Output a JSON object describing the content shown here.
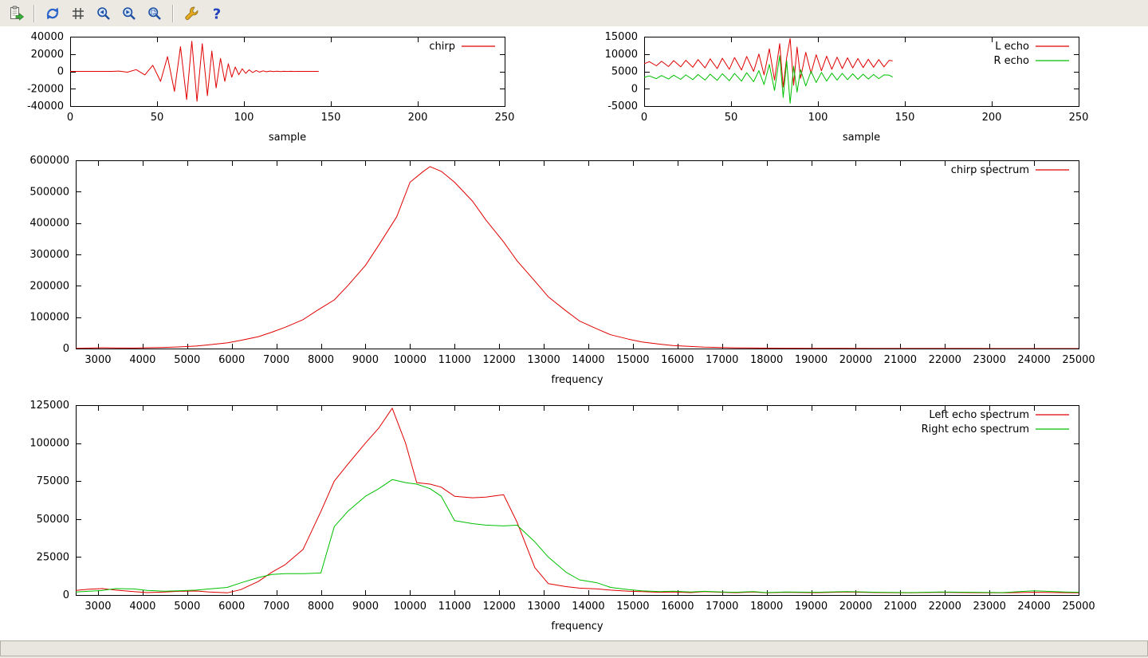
{
  "statusbar": {
    "text": ""
  },
  "toolbar": {
    "buttons": [
      {
        "name": "copy-plot-button",
        "icon": "clipboard-copy-icon"
      },
      {
        "type": "separator"
      },
      {
        "name": "replot-button",
        "icon": "refresh-arrows-icon"
      },
      {
        "name": "toggle-grid-button",
        "icon": "grid-icon"
      },
      {
        "name": "zoom-previous-button",
        "icon": "magnifier-left-icon"
      },
      {
        "name": "zoom-next-button",
        "icon": "magnifier-right-icon"
      },
      {
        "name": "autoscale-button",
        "icon": "magnifier-icon"
      },
      {
        "type": "separator"
      },
      {
        "name": "configure-button",
        "icon": "wrench-icon"
      },
      {
        "name": "help-button",
        "icon": "question-mark-icon"
      }
    ]
  },
  "colors": {
    "red": "#e00000",
    "green": "#00c000",
    "axis": "#000000"
  },
  "chart_data": [
    {
      "type": "line",
      "title": "",
      "xlabel": "sample",
      "ylabel": "",
      "xlim": [
        0,
        250
      ],
      "ylim": [
        -40000,
        40000
      ],
      "xticks": [
        0,
        50,
        100,
        150,
        200,
        250
      ],
      "yticks": [
        -40000,
        -20000,
        0,
        20000,
        40000
      ],
      "grid": false,
      "legend_position": "top-right",
      "series": [
        {
          "name": "chirp",
          "color": "#e00000",
          "x": [
            0,
            24,
            28,
            33,
            38,
            43,
            47.5,
            52,
            56,
            60,
            63.5,
            67,
            70,
            73,
            76,
            79,
            81.5,
            84,
            86.5,
            89,
            91,
            93,
            95,
            97,
            99,
            101,
            103,
            105,
            107,
            109,
            111,
            113,
            115,
            117,
            119,
            121,
            123,
            125,
            127,
            129,
            131,
            133,
            135,
            137,
            139,
            141,
            143
          ],
          "y": [
            0,
            0,
            400,
            -900,
            2000,
            -4000,
            7000,
            -11500,
            17000,
            -23000,
            28500,
            -32500,
            34800,
            -34500,
            32000,
            -28000,
            23500,
            -19000,
            15000,
            -11500,
            8800,
            -6700,
            5100,
            -3900,
            3000,
            -2300,
            1800,
            -1400,
            1050,
            -800,
            620,
            -480,
            370,
            -280,
            215,
            -165,
            130,
            -100,
            75,
            -60,
            45,
            -35,
            25,
            -20,
            15,
            -10,
            0
          ]
        }
      ]
    },
    {
      "type": "line",
      "title": "",
      "xlabel": "sample",
      "ylabel": "",
      "xlim": [
        0,
        250
      ],
      "ylim": [
        -5000,
        15000
      ],
      "xticks": [
        0,
        50,
        100,
        150,
        200,
        250
      ],
      "yticks": [
        -5000,
        0,
        5000,
        10000,
        15000
      ],
      "grid": false,
      "legend_position": "top-right",
      "series": [
        {
          "name": "L echo",
          "color": "#e00000",
          "x": [
            0,
            3,
            7,
            10,
            14,
            17,
            21,
            24,
            28,
            31,
            35,
            38,
            42,
            45,
            49,
            52,
            56,
            59,
            63,
            66,
            69,
            72,
            75,
            78,
            80,
            82,
            84,
            86,
            88,
            90,
            93,
            96,
            99,
            102,
            105,
            108,
            111,
            114,
            117,
            120,
            123,
            126,
            129,
            132,
            135,
            138,
            141,
            143
          ],
          "y": [
            7200,
            7800,
            6600,
            7900,
            6400,
            8100,
            6300,
            8200,
            6200,
            8400,
            6000,
            8600,
            5800,
            8800,
            5600,
            9000,
            5400,
            9300,
            5000,
            10000,
            4000,
            11500,
            2500,
            13000,
            500,
            9000,
            14500,
            1000,
            12000,
            3000,
            10500,
            4500,
            9800,
            5200,
            9400,
            5600,
            9100,
            5800,
            8900,
            6000,
            8700,
            6100,
            8500,
            6200,
            8400,
            6300,
            8200,
            8000
          ]
        },
        {
          "name": "R echo",
          "color": "#00c000",
          "x": [
            0,
            3,
            7,
            10,
            14,
            17,
            21,
            24,
            28,
            31,
            35,
            38,
            42,
            45,
            49,
            52,
            56,
            59,
            63,
            66,
            69,
            72,
            75,
            78,
            80,
            82,
            84,
            86,
            88,
            90,
            93,
            96,
            99,
            102,
            105,
            108,
            111,
            114,
            117,
            120,
            123,
            126,
            129,
            132,
            135,
            138,
            141,
            143
          ],
          "y": [
            3300,
            3700,
            2900,
            3800,
            2800,
            3900,
            2700,
            4000,
            2600,
            4100,
            2500,
            4200,
            2400,
            4300,
            2300,
            4400,
            2200,
            4600,
            2000,
            5200,
            1200,
            7000,
            -500,
            9500,
            -2500,
            8000,
            -4200,
            6500,
            -1000,
            5500,
            800,
            5000,
            1800,
            4700,
            2200,
            4500,
            2500,
            4400,
            2600,
            4300,
            2700,
            4200,
            2800,
            4100,
            2900,
            4000,
            3900,
            3400
          ]
        }
      ]
    },
    {
      "type": "line",
      "title": "",
      "xlabel": "frequency",
      "ylabel": "",
      "xlim": [
        2500,
        25000
      ],
      "ylim": [
        0,
        600000
      ],
      "xticks": [
        3000,
        4000,
        5000,
        6000,
        7000,
        8000,
        9000,
        10000,
        11000,
        12000,
        13000,
        14000,
        15000,
        16000,
        17000,
        18000,
        19000,
        20000,
        21000,
        22000,
        23000,
        24000,
        25000
      ],
      "yticks": [
        0,
        100000,
        200000,
        300000,
        400000,
        500000,
        600000
      ],
      "grid": false,
      "legend_position": "top-right",
      "series": [
        {
          "name": "chirp spectrum",
          "color": "#e00000",
          "x": [
            2500,
            2800,
            3100,
            3400,
            3800,
            4100,
            4500,
            4800,
            5200,
            5500,
            5900,
            6200,
            6600,
            6900,
            7200,
            7600,
            7900,
            8300,
            8600,
            9000,
            9300,
            9700,
            10000,
            10300,
            10450,
            10700,
            11000,
            11400,
            11700,
            12100,
            12400,
            12800,
            13100,
            13500,
            13800,
            14200,
            14500,
            14900,
            15200,
            15600,
            15900,
            16300,
            16600,
            17000,
            17300,
            17700,
            18000,
            18400,
            19000,
            19700,
            20400,
            21100,
            21800,
            22500,
            23200,
            23900,
            24600,
            25000
          ],
          "y": [
            500,
            1500,
            2500,
            2000,
            1500,
            2500,
            3500,
            5000,
            8000,
            12000,
            18000,
            26000,
            38000,
            52000,
            68000,
            92000,
            120000,
            155000,
            200000,
            265000,
            330000,
            420000,
            530000,
            565000,
            580000,
            565000,
            530000,
            470000,
            410000,
            340000,
            280000,
            215000,
            165000,
            120000,
            88000,
            62000,
            44000,
            30000,
            21000,
            14000,
            9500,
            6500,
            4500,
            3200,
            2300,
            1700,
            1200,
            900,
            600,
            400,
            300,
            250,
            200,
            150,
            120,
            100,
            80,
            70
          ]
        }
      ]
    },
    {
      "type": "line",
      "title": "",
      "xlabel": "frequency",
      "ylabel": "",
      "xlim": [
        2500,
        25000
      ],
      "ylim": [
        0,
        125000
      ],
      "xticks": [
        3000,
        4000,
        5000,
        6000,
        7000,
        8000,
        9000,
        10000,
        11000,
        12000,
        13000,
        14000,
        15000,
        16000,
        17000,
        18000,
        19000,
        20000,
        21000,
        22000,
        23000,
        24000,
        25000
      ],
      "yticks": [
        0,
        25000,
        50000,
        75000,
        100000,
        125000
      ],
      "grid": false,
      "legend_position": "top-right",
      "series": [
        {
          "name": "Left echo spectrum",
          "color": "#e00000",
          "x": [
            2500,
            2800,
            3100,
            3400,
            3800,
            4100,
            4500,
            4800,
            5200,
            5500,
            5900,
            6200,
            6600,
            6900,
            7200,
            7600,
            8000,
            8300,
            8600,
            9000,
            9300,
            9600,
            9900,
            10150,
            10450,
            10700,
            11000,
            11400,
            11700,
            12100,
            12400,
            12800,
            13100,
            13500,
            13800,
            14200,
            14500,
            14900,
            15200,
            15600,
            15900,
            16300,
            16600,
            17000,
            17300,
            17700,
            18000,
            18400,
            19100,
            19800,
            20500,
            21200,
            21900,
            22600,
            23300,
            24000,
            24700,
            25000
          ],
          "y": [
            3000,
            3800,
            4200,
            3200,
            2200,
            1600,
            2000,
            2400,
            2600,
            2000,
            1400,
            3500,
            9000,
            15000,
            20000,
            30000,
            55000,
            75000,
            86000,
            100000,
            110000,
            123000,
            100000,
            74000,
            73000,
            71000,
            65000,
            64000,
            64500,
            66000,
            48000,
            18000,
            7500,
            5500,
            4500,
            4000,
            3200,
            2500,
            2200,
            1800,
            2000,
            1600,
            2200,
            1800,
            1500,
            2000,
            1400,
            1800,
            1500,
            2000,
            1600,
            1400,
            1800,
            1500,
            1400,
            1800,
            1500,
            1400
          ]
        },
        {
          "name": "Right echo spectrum",
          "color": "#00c000",
          "x": [
            2500,
            2800,
            3100,
            3400,
            3800,
            4100,
            4500,
            4800,
            5200,
            5500,
            5900,
            6200,
            6600,
            6900,
            7200,
            7600,
            8000,
            8300,
            8600,
            9000,
            9300,
            9600,
            9900,
            10150,
            10450,
            10700,
            11000,
            11400,
            11700,
            12100,
            12400,
            12800,
            13100,
            13500,
            13800,
            14200,
            14500,
            14900,
            15200,
            15600,
            15900,
            16300,
            16600,
            17000,
            17300,
            17700,
            18000,
            18400,
            19100,
            19800,
            20500,
            21200,
            21900,
            22600,
            23300,
            24000,
            24700,
            25000
          ],
          "y": [
            2000,
            2500,
            3000,
            4200,
            4000,
            3000,
            2500,
            2800,
            3200,
            4000,
            5000,
            8000,
            11500,
            13500,
            14000,
            14000,
            14500,
            45000,
            55000,
            65000,
            70000,
            76000,
            74000,
            73000,
            70000,
            65000,
            49000,
            47000,
            46000,
            45500,
            46000,
            35000,
            25000,
            15000,
            10000,
            8000,
            5000,
            3500,
            2800,
            2200,
            2500,
            2000,
            2400,
            2000,
            1800,
            2200,
            1600,
            2000,
            1800,
            2200,
            1800,
            1600,
            2000,
            1800,
            1600,
            2800,
            2000,
            1800
          ]
        }
      ]
    }
  ]
}
